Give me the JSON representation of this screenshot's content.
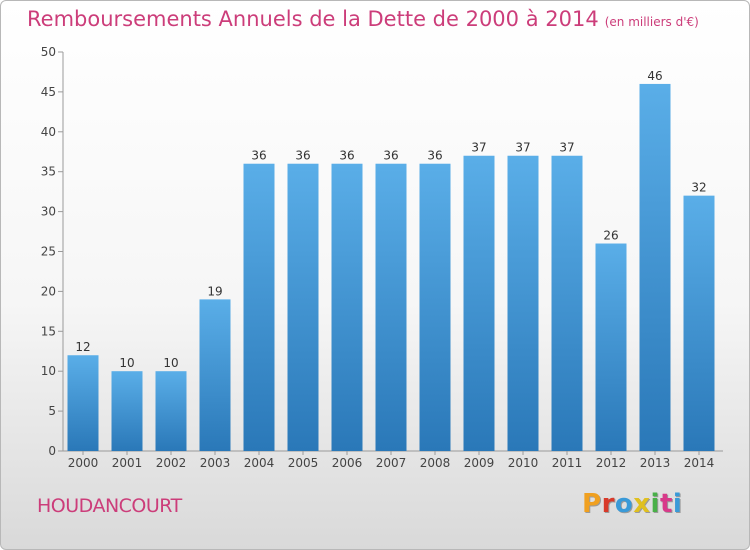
{
  "chart_data": {
    "type": "bar",
    "title": "Remboursements Annuels de la Dette de 2000 à 2014",
    "subtitle": "(en milliers d'€)",
    "categories": [
      "2000",
      "2001",
      "2002",
      "2003",
      "2004",
      "2005",
      "2006",
      "2007",
      "2008",
      "2009",
      "2010",
      "2011",
      "2012",
      "2013",
      "2014"
    ],
    "values": [
      12,
      10,
      10,
      19,
      36,
      36,
      36,
      36,
      36,
      37,
      37,
      37,
      26,
      46,
      32
    ],
    "ylim": [
      0,
      50
    ],
    "yticks": [
      0,
      5,
      10,
      15,
      20,
      25,
      30,
      35,
      40,
      45,
      50
    ],
    "data_labels": true,
    "grid": false,
    "bar_color_top": "#5aaee8",
    "bar_color_bottom": "#2a78b8"
  },
  "footer": {
    "commune": "HOUDANCOURT",
    "brand": "Proxiti",
    "brand_colors": [
      "#f0a020",
      "#d83a2a",
      "#3a9ad8",
      "#e0c020",
      "#49b048",
      "#d83a8a",
      "#3a9ad8"
    ]
  },
  "colors": {
    "title": "#cc3d7a"
  }
}
